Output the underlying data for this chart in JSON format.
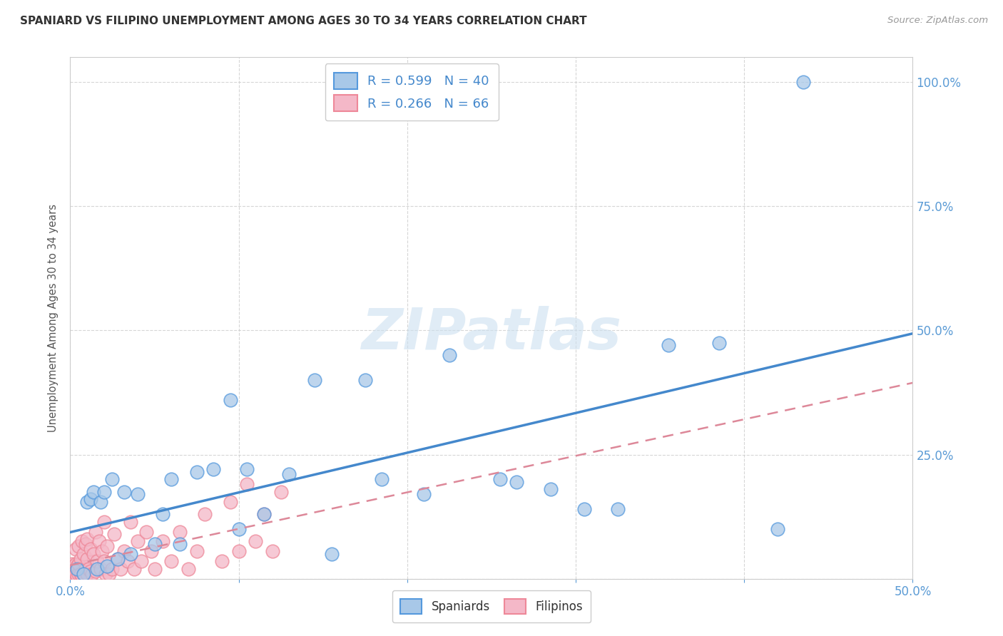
{
  "title": "SPANIARD VS FILIPINO UNEMPLOYMENT AMONG AGES 30 TO 34 YEARS CORRELATION CHART",
  "source": "Source: ZipAtlas.com",
  "ylabel": "Unemployment Among Ages 30 to 34 years",
  "watermark": "ZIPatlas",
  "xlim": [
    0.0,
    0.5
  ],
  "ylim": [
    0.0,
    1.05
  ],
  "xticks": [
    0.0,
    0.1,
    0.2,
    0.3,
    0.4,
    0.5
  ],
  "xticklabels": [
    "0.0%",
    "",
    "",
    "",
    "",
    "50.0%"
  ],
  "yticks": [
    0.0,
    0.25,
    0.5,
    0.75,
    1.0
  ],
  "yticklabels_right": [
    "",
    "25.0%",
    "50.0%",
    "75.0%",
    "100.0%"
  ],
  "spaniard_color": "#a8c8e8",
  "filipino_color": "#f4b8c8",
  "spaniard_edge": "#5599dd",
  "filipino_edge": "#ee8899",
  "background_color": "#ffffff",
  "grid_color": "#cccccc",
  "title_color": "#333333",
  "tick_color": "#5b9bd5",
  "line_blue": "#4488cc",
  "line_pink": "#dd8899",
  "watermark_color": "#cce0f0",
  "legend_label_1": "R = 0.599   N = 40",
  "legend_label_2": "R = 0.266   N = 66",
  "legend_spaniards": "Spaniards",
  "legend_filipinos": "Filipinos",
  "spaniard_x": [
    0.004,
    0.008,
    0.01,
    0.012,
    0.014,
    0.016,
    0.018,
    0.02,
    0.022,
    0.025,
    0.028,
    0.032,
    0.036,
    0.04,
    0.05,
    0.055,
    0.06,
    0.065,
    0.075,
    0.085,
    0.095,
    0.1,
    0.105,
    0.115,
    0.13,
    0.145,
    0.155,
    0.175,
    0.185,
    0.21,
    0.225,
    0.255,
    0.265,
    0.285,
    0.305,
    0.325,
    0.355,
    0.385,
    0.42,
    0.435
  ],
  "spaniard_y": [
    0.02,
    0.01,
    0.155,
    0.16,
    0.175,
    0.02,
    0.155,
    0.175,
    0.025,
    0.2,
    0.04,
    0.175,
    0.05,
    0.17,
    0.07,
    0.13,
    0.2,
    0.07,
    0.215,
    0.22,
    0.36,
    0.1,
    0.22,
    0.13,
    0.21,
    0.4,
    0.05,
    0.4,
    0.2,
    0.17,
    0.45,
    0.2,
    0.195,
    0.18,
    0.14,
    0.14,
    0.47,
    0.475,
    0.1,
    1.0
  ],
  "filipino_x": [
    0.001,
    0.001,
    0.002,
    0.002,
    0.003,
    0.003,
    0.003,
    0.004,
    0.004,
    0.005,
    0.005,
    0.005,
    0.006,
    0.006,
    0.007,
    0.007,
    0.008,
    0.008,
    0.009,
    0.009,
    0.01,
    0.01,
    0.01,
    0.011,
    0.012,
    0.012,
    0.013,
    0.014,
    0.015,
    0.015,
    0.016,
    0.017,
    0.018,
    0.019,
    0.02,
    0.02,
    0.021,
    0.022,
    0.023,
    0.025,
    0.026,
    0.028,
    0.03,
    0.032,
    0.034,
    0.036,
    0.038,
    0.04,
    0.042,
    0.045,
    0.048,
    0.05,
    0.055,
    0.06,
    0.065,
    0.07,
    0.075,
    0.08,
    0.09,
    0.095,
    0.1,
    0.105,
    0.11,
    0.115,
    0.12,
    0.125
  ],
  "filipino_y": [
    0.01,
    0.03,
    0.005,
    0.025,
    0.01,
    0.03,
    0.06,
    0.005,
    0.025,
    0.01,
    0.03,
    0.065,
    0.01,
    0.04,
    0.005,
    0.075,
    0.01,
    0.05,
    0.02,
    0.07,
    0.01,
    0.04,
    0.08,
    0.02,
    0.015,
    0.06,
    0.01,
    0.05,
    0.015,
    0.095,
    0.035,
    0.075,
    0.02,
    0.055,
    0.035,
    0.115,
    0.01,
    0.065,
    0.01,
    0.02,
    0.09,
    0.04,
    0.02,
    0.055,
    0.035,
    0.115,
    0.02,
    0.075,
    0.035,
    0.095,
    0.055,
    0.02,
    0.075,
    0.035,
    0.095,
    0.02,
    0.055,
    0.13,
    0.035,
    0.155,
    0.055,
    0.19,
    0.075,
    0.13,
    0.055,
    0.175
  ]
}
